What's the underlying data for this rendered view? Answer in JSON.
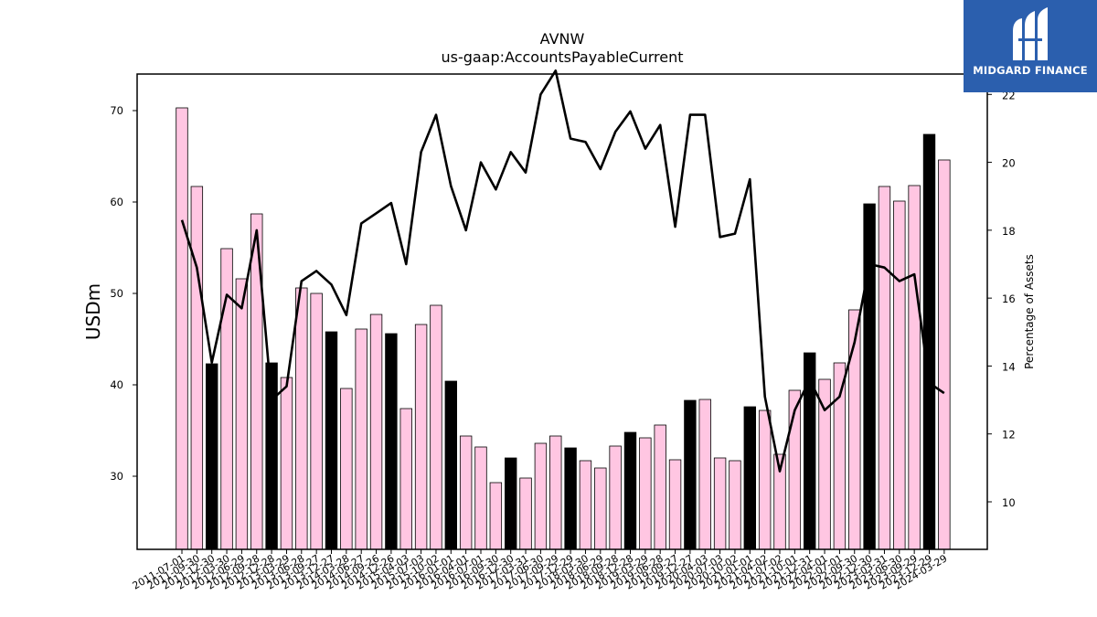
{
  "chart_data": {
    "type": "bar",
    "title": "AVNW",
    "subtitle": "us-gaap:AccountsPayableCurrent",
    "ylabel": "USDm",
    "ylabel_right": "Percentage of Assets",
    "ylim": [
      22,
      74
    ],
    "ylim_right": [
      8.6,
      22.6
    ],
    "yticks": [
      30,
      40,
      50,
      60,
      70
    ],
    "yticks_right": [
      10,
      12,
      14,
      16,
      18,
      20,
      22
    ],
    "categories": [
      "2011-07-01",
      "2011-09-30",
      "2011-12-30",
      "2012-03-30",
      "2012-06-29",
      "2012-09-28",
      "2012-12-28",
      "2013-03-29",
      "2013-06-28",
      "2013-09-27",
      "2013-12-27",
      "2014-03-28",
      "2014-06-27",
      "2014-09-26",
      "2014-12-26",
      "2015-04-03",
      "2015-07-03",
      "2015-10-02",
      "2016-01-01",
      "2016-04-01",
      "2016-07-01",
      "2016-09-30",
      "2016-12-30",
      "2017-03-31",
      "2017-06-30",
      "2017-09-29",
      "2017-12-29",
      "2018-03-30",
      "2018-06-29",
      "2018-09-28",
      "2018-12-28",
      "2019-03-29",
      "2019-06-28",
      "2019-09-27",
      "2019-12-27",
      "2020-04-03",
      "2020-07-03",
      "2020-10-02",
      "2021-01-01",
      "2021-04-02",
      "2021-07-02",
      "2021-10-01",
      "2021-12-31",
      "2022-04-01",
      "2022-07-01",
      "2022-09-30",
      "2022-12-30",
      "2023-03-31",
      "2023-06-30",
      "2023-09-29",
      "2023-12-29",
      "2024-03-29"
    ],
    "series": [
      {
        "type": "bar",
        "values": [
          70.3,
          61.7,
          42.3,
          54.9,
          51.6,
          58.7,
          42.4,
          40.8,
          50.6,
          50.0,
          45.8,
          39.6,
          46.1,
          47.7,
          45.6,
          37.4,
          46.6,
          48.7,
          40.4,
          34.4,
          33.2,
          29.3,
          32.0,
          29.8,
          33.6,
          34.4,
          33.1,
          31.7,
          30.9,
          33.3,
          34.8,
          34.2,
          35.6,
          31.8,
          38.3,
          38.4,
          32.0,
          31.7,
          37.6,
          37.2,
          32.4,
          39.4,
          43.5,
          40.6,
          42.4,
          48.2,
          59.8,
          61.7,
          60.1,
          61.8,
          67.4,
          64.6
        ],
        "highlight": [
          false,
          false,
          true,
          false,
          false,
          false,
          true,
          false,
          false,
          false,
          true,
          false,
          false,
          false,
          true,
          false,
          false,
          false,
          true,
          false,
          false,
          false,
          true,
          false,
          false,
          false,
          true,
          false,
          false,
          false,
          true,
          false,
          false,
          false,
          true,
          false,
          false,
          false,
          true,
          false,
          false,
          false,
          true,
          false,
          false,
          false,
          true,
          false,
          false,
          false,
          true,
          false
        ]
      },
      {
        "type": "line",
        "axis": "right",
        "values": [
          18.3,
          16.9,
          14.1,
          16.1,
          15.7,
          18.0,
          13.0,
          13.4,
          16.5,
          16.8,
          16.4,
          15.5,
          18.2,
          18.5,
          18.8,
          17.0,
          20.3,
          21.4,
          19.3,
          18.0,
          20.0,
          19.2,
          20.3,
          19.7,
          22.0,
          22.7,
          20.7,
          20.6,
          19.8,
          20.9,
          21.5,
          20.4,
          21.1,
          18.1,
          21.4,
          21.4,
          17.8,
          17.9,
          19.5,
          13.1,
          10.9,
          12.7,
          13.6,
          12.7,
          13.1,
          14.7,
          17.0,
          16.9,
          16.5,
          16.7,
          13.5,
          13.2
        ]
      }
    ],
    "colors": {
      "bar": "#ffc6e2",
      "bar_highlight": "#000000",
      "line": "#000000"
    },
    "grid": false
  },
  "logo": {
    "text": "MIDGARD FINANCE",
    "bg": "#2b5fae"
  }
}
